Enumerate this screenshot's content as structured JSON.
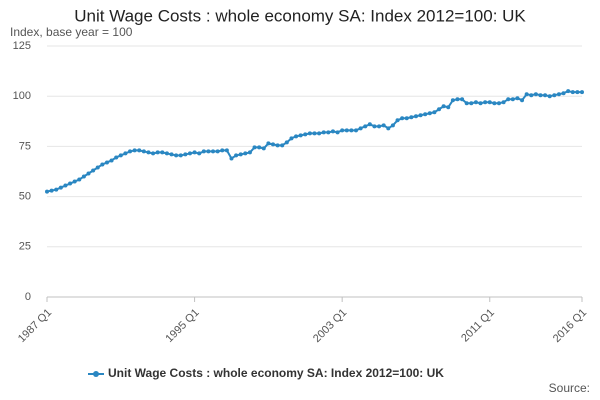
{
  "chart_data": {
    "type": "line",
    "title": "Unit Wage Costs : whole economy SA: Index 2012=100: UK",
    "ylabel": "Index, base year = 100",
    "source": "Source:",
    "categories": [
      "1987 Q1",
      null,
      null,
      null,
      null,
      null,
      null,
      null,
      null,
      null,
      null,
      null,
      null,
      null,
      null,
      null,
      null,
      null,
      null,
      null,
      null,
      null,
      null,
      null,
      null,
      null,
      null,
      null,
      null,
      null,
      null,
      null,
      "1995 Q1",
      null,
      null,
      null,
      null,
      null,
      null,
      null,
      null,
      null,
      null,
      null,
      null,
      null,
      null,
      null,
      null,
      null,
      null,
      null,
      null,
      null,
      null,
      null,
      null,
      null,
      null,
      null,
      null,
      null,
      null,
      null,
      "2003 Q1",
      null,
      null,
      null,
      null,
      null,
      null,
      null,
      null,
      null,
      null,
      null,
      null,
      null,
      null,
      null,
      null,
      null,
      null,
      null,
      null,
      null,
      null,
      null,
      null,
      null,
      null,
      null,
      null,
      null,
      null,
      null,
      "2011 Q1",
      null,
      null,
      null,
      null,
      null,
      null,
      null,
      null,
      null,
      null,
      null,
      null,
      null,
      null,
      null,
      null,
      null,
      null,
      null,
      "2016 Q1"
    ],
    "series": [
      {
        "name": "Unit Wage Costs : whole economy SA: Index 2012=100: UK",
        "color": "#2a87c2",
        "values": [
          52.5,
          53,
          53.5,
          54.5,
          55.5,
          56.5,
          57.5,
          58.5,
          60,
          61.5,
          63,
          64.5,
          66,
          67,
          68,
          69.5,
          70.5,
          71.5,
          72.5,
          73,
          73,
          72.5,
          72,
          71.5,
          72,
          72,
          71.5,
          71,
          70.5,
          70.5,
          71,
          71.5,
          72,
          71.5,
          72.5,
          72.5,
          72.5,
          72.5,
          73,
          73,
          69,
          70.5,
          71,
          71.5,
          72,
          74.5,
          74.5,
          74,
          76.5,
          76,
          75.5,
          75.5,
          77,
          79,
          80,
          80.5,
          81,
          81.5,
          81.5,
          81.5,
          82,
          82,
          82.5,
          82,
          83,
          83,
          83,
          83,
          84,
          85,
          86,
          85,
          85,
          85.5,
          84,
          85.5,
          88,
          89,
          89,
          89.5,
          90,
          90.5,
          91,
          91.5,
          92,
          93.5,
          95,
          94.5,
          98,
          98.5,
          98.5,
          96.5,
          96.5,
          97,
          96.5,
          97,
          97,
          96.5,
          96.5,
          97,
          98.5,
          98.5,
          99,
          98,
          101,
          100.5,
          101,
          100.5,
          100.5,
          100,
          100.5,
          101,
          101.5,
          102.5,
          102,
          102,
          102
        ]
      }
    ],
    "ylim": [
      0,
      125
    ],
    "yticks": [
      0,
      25,
      50,
      75,
      100,
      125
    ],
    "grid": true,
    "legend": "bottom"
  }
}
